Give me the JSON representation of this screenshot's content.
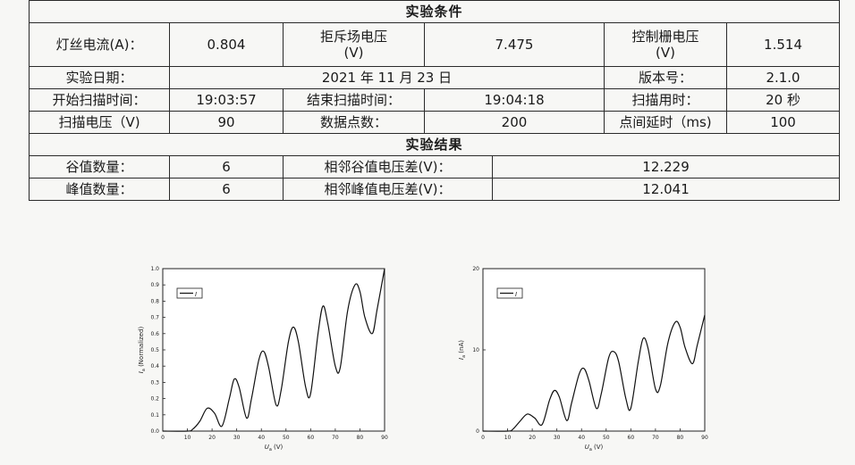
{
  "table": {
    "conditions_title": "实验条件",
    "filament_current_label": "灯丝电流(A)：",
    "filament_current_value": "0.804",
    "repel_voltage_label_1": "拒斥场电压",
    "repel_voltage_label_2": "(V)",
    "repel_voltage_value": "7.475",
    "grid_voltage_label_1": "控制栅电压",
    "grid_voltage_label_2": "(V)",
    "grid_voltage_value": "1.514",
    "date_label": "实验日期：",
    "date_value": "2021 年 11 月 23 日",
    "version_label": "版本号：",
    "version_value": "2.1.0",
    "start_time_label": "开始扫描时间：",
    "start_time_value": "19:03:57",
    "end_time_label": "结束扫描时间：",
    "end_time_value": "19:04:18",
    "duration_label": "扫描用时：",
    "duration_value": "20 秒",
    "scan_voltage_label": "扫描电压（V)",
    "scan_voltage_value": "90",
    "points_label": "数据点数：",
    "points_value": "200",
    "delay_label": "点间延时（ms)",
    "delay_value": "100",
    "results_title": "实验结果",
    "valley_count_label": "谷值数量：",
    "valley_count_value": "6",
    "valley_diff_label": "相邻谷值电压差(V)：",
    "valley_diff_value": "12.229",
    "peak_count_label": "峰值数量：",
    "peak_count_value": "6",
    "peak_diff_label": "相邻峰值电压差(V)：",
    "peak_diff_value": "12.041"
  },
  "chart_data": [
    {
      "type": "line",
      "ylabel": "I_a (Normalized)",
      "xlabel": "U_a (V)",
      "xlim": [
        0,
        90
      ],
      "ylim": [
        0,
        1.0
      ],
      "xticks": [
        "0",
        "10",
        "20",
        "30",
        "40",
        "50",
        "60",
        "70",
        "80",
        "90"
      ],
      "yticks": [
        "0.0",
        "0.1",
        "0.2",
        "0.3",
        "0.4",
        "0.5",
        "0.6",
        "0.7",
        "0.8",
        "0.9",
        "1.0"
      ],
      "legend": "I",
      "legend_placement": "top-left",
      "series": [
        {
          "x": [
            0,
            10,
            12,
            15,
            18,
            21,
            24,
            27,
            29,
            31,
            34,
            36,
            39,
            41,
            43,
            46,
            48,
            51,
            53,
            55,
            58,
            60,
            63,
            65,
            67,
            70,
            72,
            75,
            78,
            80,
            82,
            85,
            87,
            90
          ],
          "y": [
            0,
            0,
            0.01,
            0.06,
            0.14,
            0.11,
            0.03,
            0.2,
            0.32,
            0.27,
            0.08,
            0.2,
            0.44,
            0.49,
            0.39,
            0.16,
            0.25,
            0.55,
            0.64,
            0.55,
            0.27,
            0.23,
            0.6,
            0.77,
            0.66,
            0.4,
            0.39,
            0.74,
            0.9,
            0.86,
            0.7,
            0.6,
            0.75,
            1.0
          ]
        }
      ]
    },
    {
      "type": "line",
      "ylabel": "I_a (nA)",
      "xlabel": "U_a (V)",
      "xlim": [
        0,
        90
      ],
      "ylim": [
        0,
        20
      ],
      "xticks": [
        "0",
        "10",
        "20",
        "30",
        "40",
        "50",
        "60",
        "70",
        "80",
        "90"
      ],
      "yticks": [
        "0",
        "10",
        "20"
      ],
      "legend": "I",
      "legend_placement": "top-left",
      "series": [
        {
          "x": [
            0,
            10,
            12,
            15,
            18,
            21,
            24,
            27,
            29,
            31,
            34,
            36,
            39,
            41,
            43,
            46,
            48,
            51,
            53,
            55,
            58,
            60,
            63,
            65,
            67,
            70,
            72,
            75,
            78,
            80,
            82,
            85,
            87,
            90
          ],
          "y": [
            0,
            0,
            0.2,
            1.2,
            2.1,
            1.6,
            0.8,
            3.8,
            5.0,
            4.2,
            1.3,
            3.5,
            7.0,
            7.7,
            6.2,
            2.8,
            4.6,
            9.0,
            9.8,
            8.6,
            4.0,
            2.8,
            8.5,
            11.4,
            10.2,
            5.2,
            5.6,
            10.8,
            13.4,
            12.8,
            10.3,
            8.3,
            10.6,
            14.3
          ]
        }
      ]
    }
  ]
}
